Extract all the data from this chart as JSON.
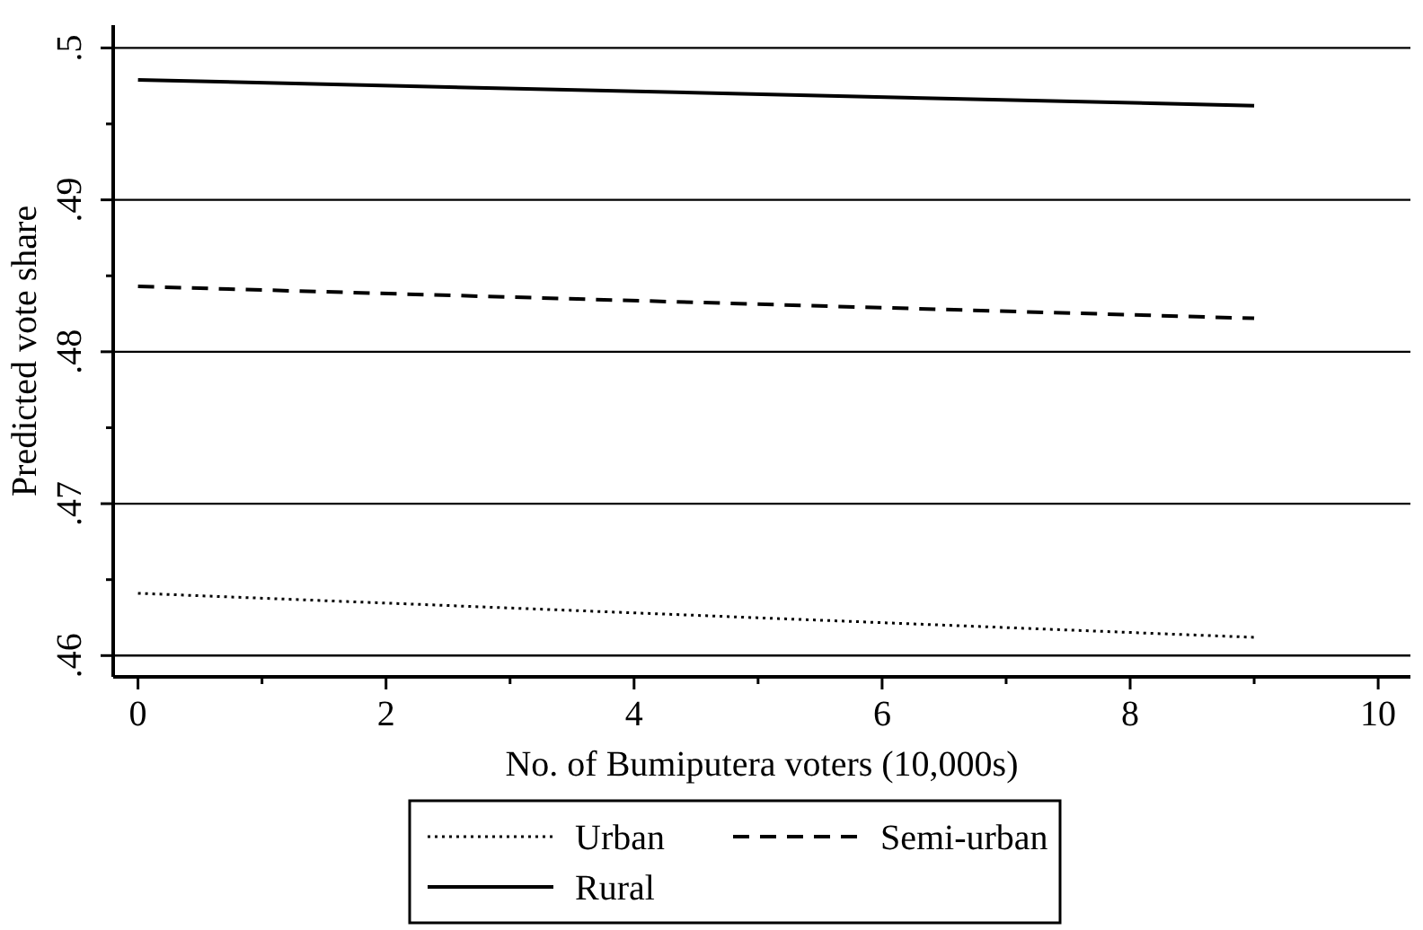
{
  "chart_data": {
    "type": "line",
    "xlabel": "No. of Bumiputera voters (10,000s)",
    "ylabel": "Predicted vote share",
    "xlim": [
      -0.2,
      10.26
    ],
    "ylim": [
      0.4586,
      0.5015
    ],
    "xticks": [
      0,
      {
        "value": 1,
        "label": null
      },
      2,
      {
        "value": 3,
        "label": null
      },
      4,
      {
        "value": 5,
        "label": null
      },
      6,
      {
        "value": 7,
        "label": null
      },
      8,
      {
        "value": 9,
        "label": null
      },
      10
    ],
    "yticks": [
      {
        "value": 0.46,
        "label": ".46"
      },
      {
        "value": 0.465,
        "label": null
      },
      {
        "value": 0.47,
        "label": ".47"
      },
      {
        "value": 0.475,
        "label": null
      },
      {
        "value": 0.48,
        "label": ".48"
      },
      {
        "value": 0.485,
        "label": null
      },
      {
        "value": 0.49,
        "label": ".49"
      },
      {
        "value": 0.495,
        "label": null
      },
      {
        "value": 0.5,
        "label": ".5"
      }
    ],
    "grid": "y",
    "legend": "bottom",
    "marker": "none",
    "x": [
      0,
      9
    ],
    "series": [
      {
        "name": "Urban",
        "color": "#000000",
        "line_style": "dotted",
        "values": [
          0.4641,
          0.4612
        ]
      },
      {
        "name": "Semi-urban",
        "color": "#000000",
        "line_style": "dashed",
        "values": [
          0.4843,
          0.4822
        ]
      },
      {
        "name": "Rural",
        "color": "#000000",
        "line_style": "solid",
        "values": [
          0.4979,
          0.4962
        ]
      }
    ]
  }
}
